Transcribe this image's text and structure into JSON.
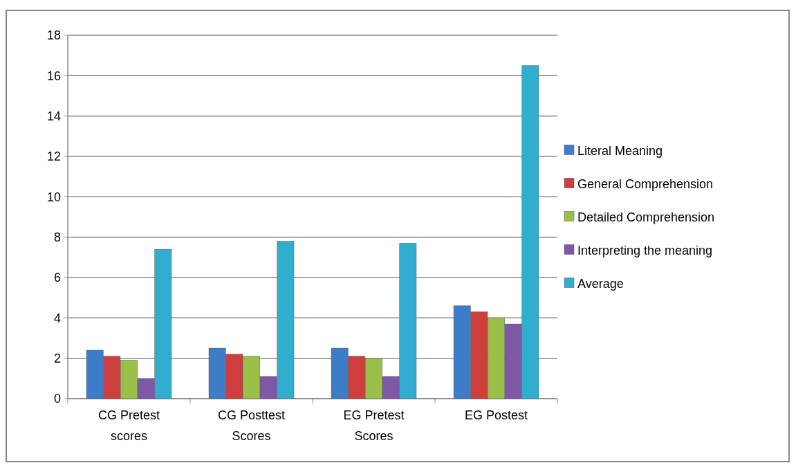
{
  "chart_data": {
    "type": "bar",
    "categories": [
      "CG Pretest scores",
      "CG Posttest Scores",
      "EG Pretest Scores",
      "EG Postest"
    ],
    "series": [
      {
        "name": "Literal Meaning",
        "color": "#3d7cc9",
        "values": [
          2.4,
          2.5,
          2.5,
          4.6
        ]
      },
      {
        "name": "General Comprehension",
        "color": "#cc3f3c",
        "values": [
          2.1,
          2.2,
          2.1,
          4.3
        ]
      },
      {
        "name": "Detailed Comprehension",
        "color": "#9bc04a",
        "values": [
          1.9,
          2.1,
          2.0,
          4.0
        ]
      },
      {
        "name": "Interpreting the meaning",
        "color": "#7e57a6",
        "values": [
          1.0,
          1.1,
          1.1,
          3.7
        ]
      },
      {
        "name": "Average",
        "color": "#31aecf",
        "values": [
          7.4,
          7.8,
          7.7,
          16.5
        ]
      }
    ],
    "ylim": [
      0,
      18
    ],
    "yticks": [
      0,
      2,
      4,
      6,
      8,
      10,
      12,
      14,
      16,
      18
    ],
    "grid": "y",
    "legend": "right"
  }
}
